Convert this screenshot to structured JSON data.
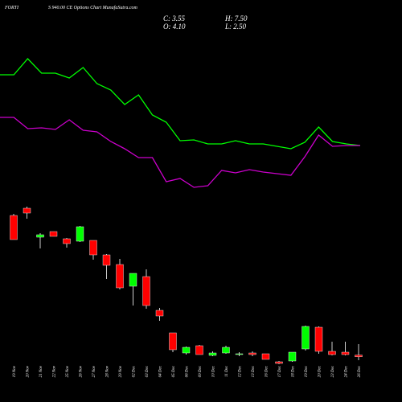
{
  "chart_data": [
    {
      "type": "candlestick",
      "title_parts": [
        "FORTI",
        "S 940.00 CE Options Chart MunafaSutra.com"
      ],
      "stats": [
        "C: 3.55",
        "H: 7.50",
        "O: 4.10",
        "L: 2.50"
      ],
      "categories": [
        "19 Nov",
        "20 Nov",
        "21 Nov",
        "22 Nov",
        "25 Nov",
        "26 Nov",
        "27 Nov",
        "28 Nov",
        "29 Nov",
        "02 Dec",
        "03 Dec",
        "04 Dec",
        "05 Dec",
        "06 Dec",
        "09 Dec",
        "10 Dec",
        "11 Dec",
        "12 Dec",
        "13 Dec",
        "16 Dec",
        "17 Dec",
        "18 Dec",
        "19 Dec",
        "20 Dec",
        "23 Dec",
        "24 Dec",
        "26 Dec"
      ],
      "open": [
        47.5,
        49.75,
        40.75,
        42.5,
        40.25,
        39.5,
        39.75,
        35.25,
        32.25,
        25.5,
        28.5,
        18,
        11,
        4.75,
        7,
        4,
        4.75,
        4.25,
        4.75,
        4.5,
        2,
        2.25,
        6,
        12.75,
        5.25,
        5,
        4.1
      ],
      "high": [
        48,
        50.25,
        42,
        42.5,
        40.5,
        44.25,
        39.75,
        35.5,
        34,
        29.5,
        30.75,
        18.75,
        11,
        6.75,
        7.25,
        5.25,
        7,
        5,
        5.25,
        4.5,
        2.25,
        5,
        13.25,
        13,
        8.25,
        8.25,
        7.5
      ],
      "low": [
        40,
        46.5,
        37.25,
        41,
        37.5,
        39.25,
        33.75,
        27.75,
        24.5,
        19.5,
        18.5,
        14.75,
        5,
        4.25,
        4.25,
        3.75,
        4.5,
        3.75,
        3.75,
        2.75,
        1.25,
        2,
        5.5,
        4.5,
        4,
        4,
        2.5
      ],
      "close": [
        40,
        48.25,
        41.5,
        41,
        38.75,
        44,
        35.25,
        32,
        25,
        29.5,
        19.5,
        16.25,
        5.75,
        6.5,
        4.25,
        4.75,
        6.5,
        4.5,
        4.25,
        2.75,
        1.5,
        5,
        13,
        5.25,
        4.25,
        4.25,
        3.55
      ],
      "up_color": "#00ff00",
      "down_color": "#ff0000",
      "ylim": [
        0,
        52
      ]
    },
    {
      "type": "line",
      "series": [
        {
          "color": "#00ff00",
          "values": [
            157,
            157,
            177,
            159,
            159,
            153,
            166,
            146,
            138,
            120,
            132,
            107,
            98,
            75,
            76,
            71,
            71,
            75,
            71,
            71,
            68,
            65,
            73,
            92,
            74,
            71,
            69
          ]
        },
        {
          "color": "#cc00cc",
          "values": [
            104,
            104,
            90,
            91,
            89,
            101,
            88,
            86,
            74,
            65,
            54,
            54,
            24,
            28,
            17,
            19,
            38,
            35,
            39,
            36,
            34,
            32,
            55,
            82,
            68,
            69,
            69
          ]
        }
      ],
      "ylim": [
        0,
        250
      ]
    }
  ]
}
